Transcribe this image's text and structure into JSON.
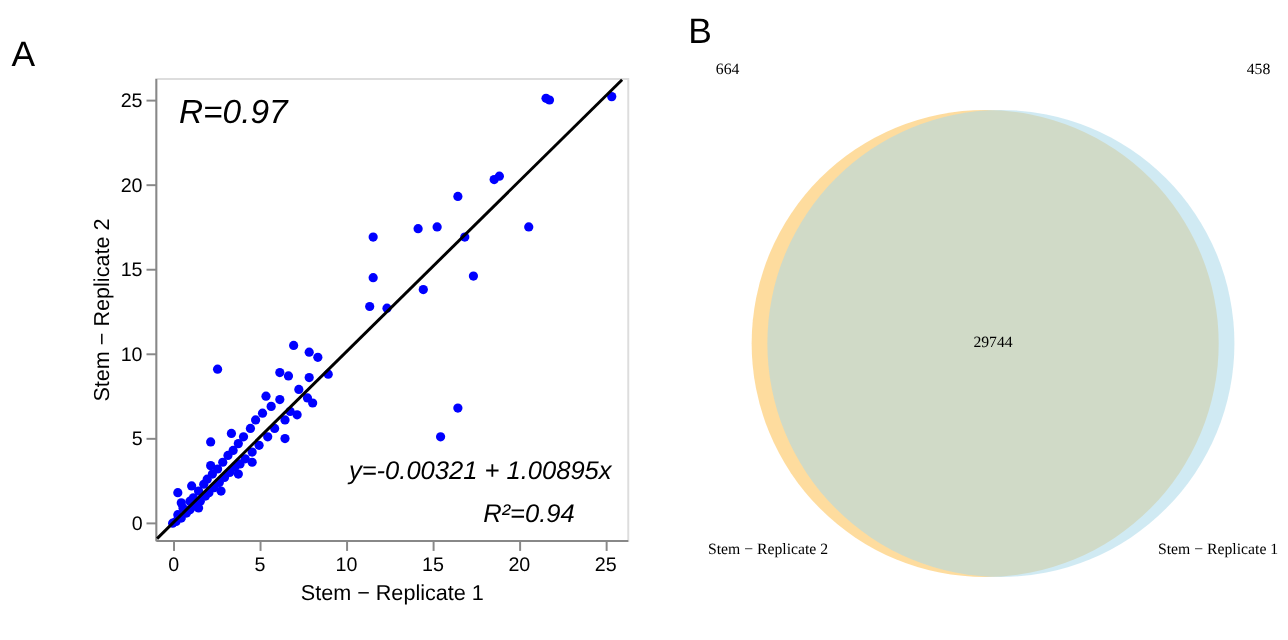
{
  "chart_data": [
    {
      "type": "scatter",
      "title": "A",
      "xlabel": "Stem − Replicate 1",
      "ylabel": "Stem − Replicate 2",
      "xlim": [
        -1,
        26.3
      ],
      "ylim": [
        -1,
        26.3
      ],
      "xticks": [
        0,
        5,
        10,
        15,
        20,
        25
      ],
      "yticks": [
        0,
        5,
        10,
        15,
        20,
        25
      ],
      "grid": false,
      "marker": "circle",
      "annotations": [
        "R=0.97",
        "y=-0.00321 + 1.00895x",
        "R²=0.94"
      ],
      "series": [
        {
          "type": "scatter",
          "color": "#0000ff",
          "x": [
            21.6,
            21.8,
            25.4,
            18.6,
            18.9,
            16.5,
            16.9,
            20.6,
            14.2,
            15.3,
            11.6,
            11.6,
            17.4,
            14.5,
            11.4,
            12.4,
            2.6,
            7.0,
            7.9,
            8.4,
            9.0,
            15.5,
            16.5,
            6.2,
            6.7,
            7.9,
            7.3,
            7.8,
            8.1,
            6.5,
            5.4,
            0.3,
            2.2,
            3.4,
            0,
            0.2,
            0.3,
            0.5,
            0.6,
            0.8,
            1,
            1,
            1.2,
            1.3,
            1.5,
            1.6,
            1.8,
            1.9,
            2,
            2.1,
            2.3,
            2.4,
            2.6,
            2.7,
            2.9,
            3,
            3.2,
            3.3,
            3.5,
            3.6,
            3.8,
            3.9,
            4.1,
            4.2,
            4.5,
            4.6,
            4.8,
            5,
            5.2,
            5.5,
            5.7,
            5.9,
            6.2,
            6.5,
            6.8,
            7.2,
            1.5,
            2.8,
            3.8,
            4.6,
            0.5,
            1.1,
            2.2
          ],
          "values": [
            25.1,
            25.0,
            25.2,
            20.3,
            20.5,
            19.3,
            16.9,
            17.5,
            17.4,
            17.5,
            16.9,
            14.5,
            14.6,
            13.8,
            12.8,
            12.7,
            9.1,
            10.5,
            10.1,
            9.8,
            8.8,
            5.1,
            6.8,
            8.9,
            8.7,
            8.6,
            7.9,
            7.4,
            7.1,
            5.0,
            7.5,
            1.8,
            4.8,
            5.3,
            0,
            0.1,
            0.5,
            0.3,
            0.9,
            0.6,
            1.3,
            0.8,
            1.5,
            1.0,
            1.9,
            1.3,
            2.3,
            1.6,
            2.6,
            1.8,
            2.9,
            2.1,
            3.2,
            2.4,
            3.6,
            2.7,
            4.0,
            3.0,
            4.3,
            3.3,
            4.7,
            3.5,
            5.1,
            3.8,
            5.6,
            4.2,
            6.1,
            4.6,
            6.5,
            5.1,
            6.9,
            5.6,
            7.3,
            6.1,
            6.6,
            6.4,
            0.9,
            1.9,
            2.9,
            3.6,
            1.2,
            2.2,
            3.4
          ]
        },
        {
          "type": "line",
          "color": "#000000",
          "marker": "none",
          "x": [
            -0.9,
            26
          ],
          "values": [
            -0.91,
            26.2
          ]
        }
      ]
    },
    {
      "type": "other",
      "title": "B",
      "categories": [
        "Stem − Replicate 2",
        "Stem − Replicate 1"
      ],
      "colors": [
        "#fdbf4f",
        "#a9d8ea"
      ],
      "annotations": [
        "664",
        "29744",
        "458"
      ]
    }
  ]
}
